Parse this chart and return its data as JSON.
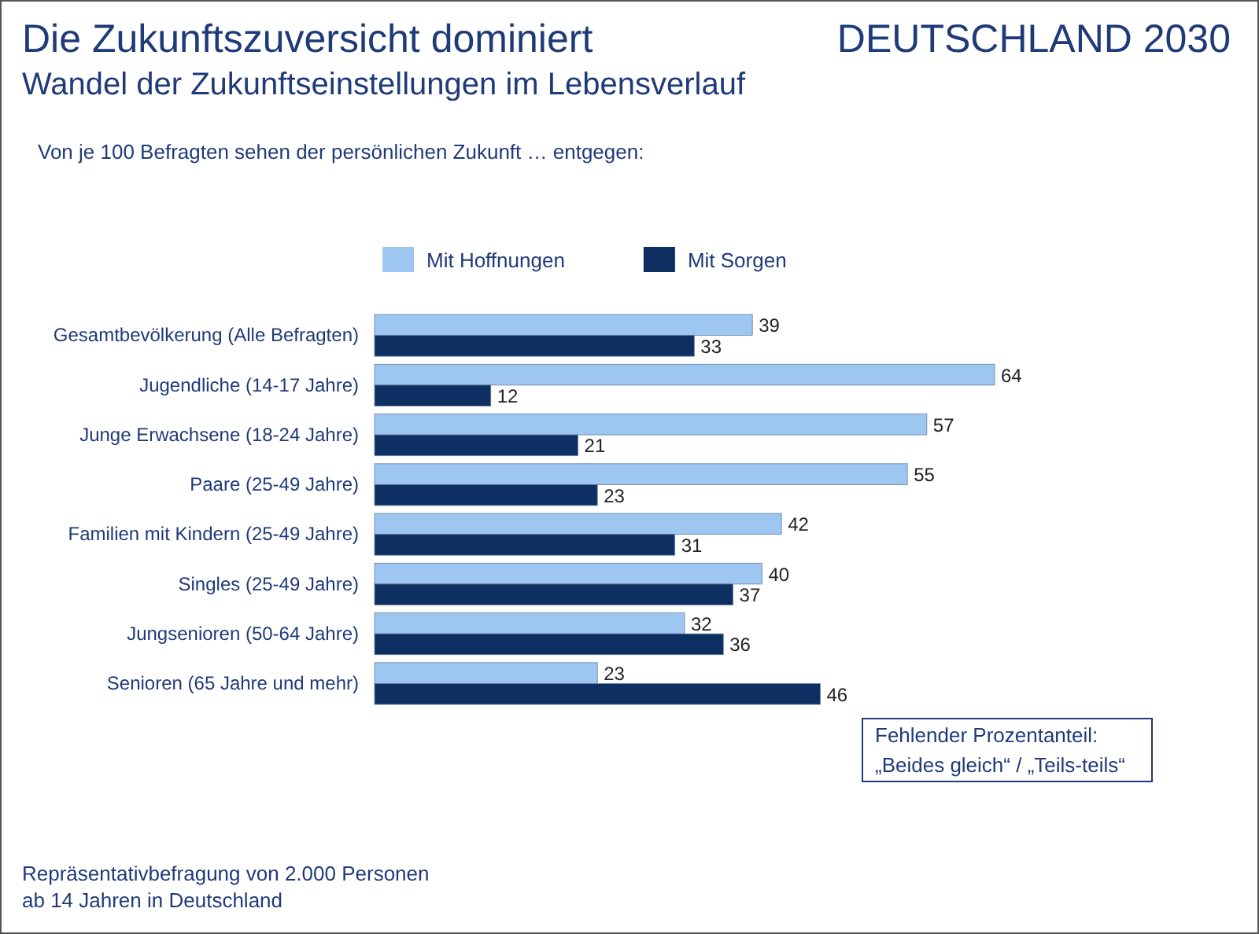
{
  "chart_data": {
    "type": "bar",
    "orientation": "horizontal",
    "title": "Die Zukunftszuversicht dominiert",
    "subtitle": "Wandel der Zukunftseinstellungen im Lebensverlauf",
    "annotations": [
      "DEUTSCHLAND 2030",
      "Von je 100 Befragten sehen der persönlichen Zukunft … entgegen:",
      "Fehlender Prozentanteil: „Beides gleich“ / „Teils-teils“",
      "Repräsentativbefragung von 2.000 Personen ab 14 Jahren in Deutschland"
    ],
    "categories": [
      "Gesamtbevölkerung (Alle Befragten)",
      "Jugendliche (14-17 Jahre)",
      "Junge Erwachsene (18-24 Jahre)",
      "Paare (25-49 Jahre)",
      "Familien mit Kindern (25-49 Jahre)",
      "Singles (25-49 Jahre)",
      "Jungsenioren (50-64 Jahre)",
      "Senioren (65 Jahre und mehr)"
    ],
    "series": [
      {
        "name": "Mit Hoffnungen",
        "color": "#9dc6f0",
        "values": [
          39,
          64,
          57,
          55,
          42,
          40,
          32,
          23
        ]
      },
      {
        "name": "Mit Sorgen",
        "color": "#0d2f62",
        "values": [
          33,
          12,
          21,
          23,
          31,
          37,
          36,
          46
        ]
      }
    ],
    "data_labels": true,
    "legend": "top"
  }
}
